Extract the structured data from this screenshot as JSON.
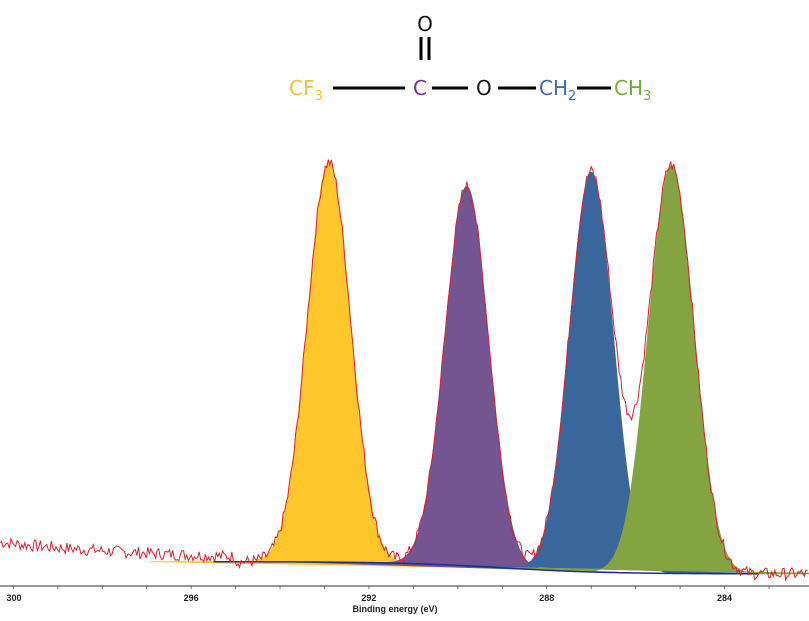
{
  "molecule": {
    "atoms": [
      {
        "id": "cf3",
        "main": "CF",
        "sub": "3",
        "color": "#FBC02D"
      },
      {
        "id": "carbonyl-c",
        "main": "C",
        "sub": "",
        "color": "#7B2C9E"
      },
      {
        "id": "carbonyl-o",
        "main": "O",
        "sub": "",
        "color": "#111111"
      },
      {
        "id": "ester-o",
        "main": "O",
        "sub": "",
        "color": "#111111"
      },
      {
        "id": "ch2",
        "main": "CH",
        "sub": "2",
        "color": "#3C6AB3"
      },
      {
        "id": "ch3",
        "main": "CH",
        "sub": "3",
        "color": "#6FAE3A"
      }
    ]
  },
  "chart_data": {
    "type": "area",
    "xlabel": "Binding energy (eV)",
    "ylabel": "",
    "x_reversed": true,
    "xlim": [
      300.3,
      282.1
    ],
    "xticks": [
      300,
      296,
      292,
      288,
      284
    ],
    "xtick_labels": [
      "300",
      "296",
      "292",
      "288",
      "284"
    ],
    "grid": false,
    "series": [
      {
        "name": "CF3",
        "center": 292.9,
        "fwhm": 1.15,
        "height": 0.98,
        "color": "#FFC72C"
      },
      {
        "name": "C",
        "center": 289.8,
        "fwhm": 1.15,
        "height": 0.93,
        "color": "#735592"
      },
      {
        "name": "CH2",
        "center": 287.0,
        "fwhm": 1.15,
        "height": 0.98,
        "color": "#3A679B"
      },
      {
        "name": "CH3",
        "center": 285.2,
        "fwhm": 1.2,
        "height": 1.0,
        "color": "#84A341"
      }
    ],
    "background": {
      "color": "#1F2F8F"
    },
    "envelope": {
      "color": "#E0202A"
    }
  }
}
